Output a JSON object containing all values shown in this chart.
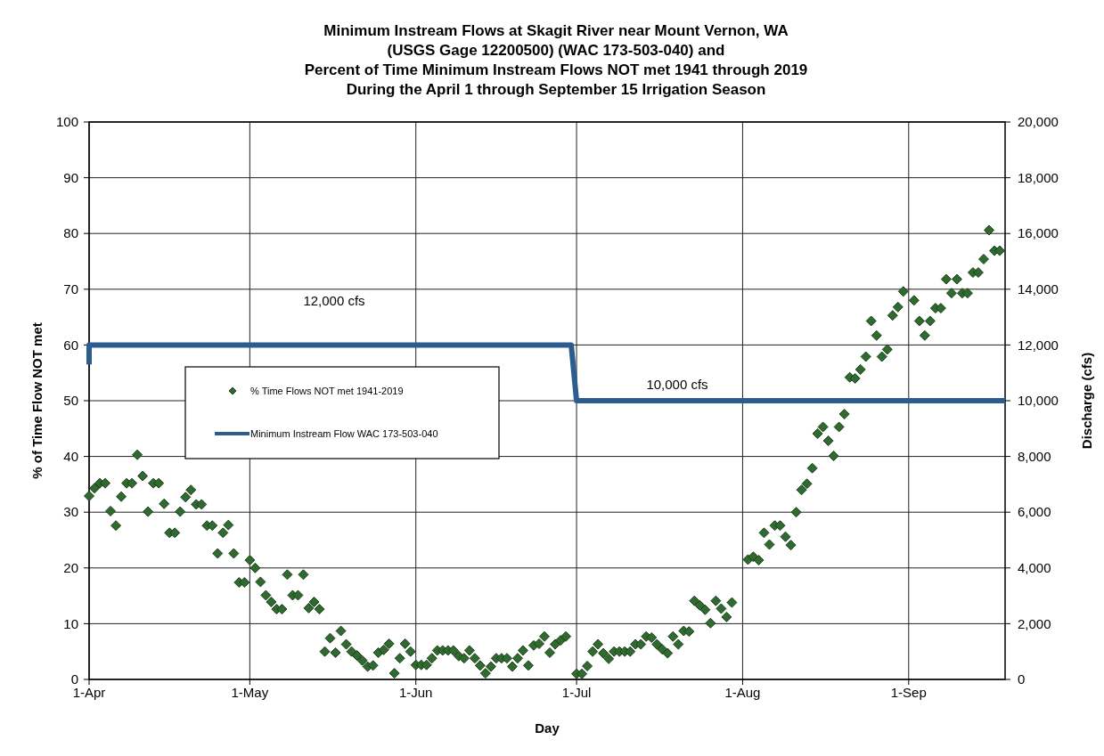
{
  "chart_data": {
    "type": "scatter",
    "title": "Minimum Instream Flows at Skagit River near Mount Vernon, WA\n(USGS Gage 12200500) (WAC 173-503-040) and\nPercent of Time Minimum Instream Flows NOT met 1941 through 2019\nDuring the April 1 through September 15 Irrigation Season",
    "xlabel": "Day",
    "ylabel": "% of Time Flow NOT met",
    "y2label": "Discharge (cfs)",
    "xlim": [
      "--04-01",
      "--09-19"
    ],
    "xticks": [
      {
        "value": "--04-01",
        "label": "1-Apr"
      },
      {
        "value": "--05-01",
        "label": "1-May"
      },
      {
        "value": "--06-01",
        "label": "1-Jun"
      },
      {
        "value": "--07-01",
        "label": "1-Jul"
      },
      {
        "value": "--08-01",
        "label": "1-Aug"
      },
      {
        "value": "--09-01",
        "label": "1-Sep"
      }
    ],
    "ylim": [
      0,
      100
    ],
    "yticks": [
      0,
      10,
      20,
      30,
      40,
      50,
      60,
      70,
      80,
      90,
      100
    ],
    "y2lim": [
      0,
      20000
    ],
    "y2ticks": [
      0,
      {
        "value": 2000,
        "label": "2,000"
      },
      {
        "value": 4000,
        "label": "4,000"
      },
      {
        "value": 6000,
        "label": "6,000"
      },
      {
        "value": 8000,
        "label": "8,000"
      },
      {
        "value": 10000,
        "label": "10,000"
      },
      {
        "value": 12000,
        "label": "12,000"
      },
      {
        "value": 14000,
        "label": "14,000"
      },
      {
        "value": 16000,
        "label": "16,000"
      },
      {
        "value": 18000,
        "label": "18,000"
      },
      {
        "value": 20000,
        "label": "20,000"
      }
    ],
    "grid": true,
    "legend": "left",
    "annotations": [
      "12,000 cfs",
      "10,000 cfs"
    ],
    "series": [
      {
        "name": "% Time Flows NOT met 1941-2019",
        "marker": "diamond",
        "color": "#2f6a2f",
        "x": [
          "--04-01",
          "--04-02",
          "--04-03",
          "--04-04",
          "--04-05",
          "--04-06",
          "--04-07",
          "--04-08",
          "--04-09",
          "--04-10",
          "--04-11",
          "--04-12",
          "--04-13",
          "--04-14",
          "--04-15",
          "--04-16",
          "--04-17",
          "--04-18",
          "--04-19",
          "--04-20",
          "--04-21",
          "--04-22",
          "--04-23",
          "--04-24",
          "--04-25",
          "--04-26",
          "--04-27",
          "--04-28",
          "--04-29",
          "--04-30",
          "--05-01",
          "--05-02",
          "--05-03",
          "--05-04",
          "--05-05",
          "--05-06",
          "--05-07",
          "--05-08",
          "--05-09",
          "--05-10",
          "--05-11",
          "--05-12",
          "--05-13",
          "--05-14",
          "--05-15",
          "--05-16",
          "--05-17",
          "--05-18",
          "--05-19",
          "--05-20",
          "--05-21",
          "--05-22",
          "--05-23",
          "--05-24",
          "--05-25",
          "--05-26",
          "--05-27",
          "--05-28",
          "--05-29",
          "--05-30",
          "--05-31",
          "--06-01",
          "--06-02",
          "--06-03",
          "--06-04",
          "--06-05",
          "--06-06",
          "--06-07",
          "--06-08",
          "--06-09",
          "--06-10",
          "--06-11",
          "--06-12",
          "--06-13",
          "--06-14",
          "--06-15",
          "--06-16",
          "--06-17",
          "--06-18",
          "--06-19",
          "--06-20",
          "--06-21",
          "--06-22",
          "--06-23",
          "--06-24",
          "--06-25",
          "--06-26",
          "--06-27",
          "--06-28",
          "--06-29",
          "--07-01",
          "--07-02",
          "--07-03",
          "--07-04",
          "--07-05",
          "--07-06",
          "--07-07",
          "--07-08",
          "--07-09",
          "--07-10",
          "--07-11",
          "--07-12",
          "--07-13",
          "--07-14",
          "--07-15",
          "--07-16",
          "--07-17",
          "--07-18",
          "--07-19",
          "--07-20",
          "--07-21",
          "--07-22",
          "--07-23",
          "--07-24",
          "--07-25",
          "--07-26",
          "--07-27",
          "--07-28",
          "--07-29",
          "--07-30",
          "--08-02",
          "--08-03",
          "--08-04",
          "--08-05",
          "--08-06",
          "--08-07",
          "--08-08",
          "--08-09",
          "--08-10",
          "--08-11",
          "--08-12",
          "--08-13",
          "--08-14",
          "--08-15",
          "--08-16",
          "--08-17",
          "--08-18",
          "--08-19",
          "--08-20",
          "--08-21",
          "--08-22",
          "--08-23",
          "--08-24",
          "--08-25",
          "--08-26",
          "--08-27",
          "--08-28",
          "--08-29",
          "--08-30",
          "--08-31",
          "--09-02",
          "--09-03",
          "--09-04",
          "--09-05",
          "--09-06",
          "--09-07",
          "--09-08",
          "--09-09",
          "--09-10",
          "--09-11",
          "--09-12",
          "--09-13",
          "--09-14",
          "--09-15",
          "--09-16",
          "--09-17",
          "--09-18"
        ],
        "values": [
          32.9,
          34.3,
          35.2,
          35.2,
          30.2,
          27.6,
          32.8,
          35.2,
          35.2,
          40.3,
          36.5,
          30.1,
          35.2,
          35.2,
          31.5,
          26.3,
          26.3,
          30.1,
          32.7,
          34,
          31.4,
          31.4,
          27.6,
          27.6,
          22.6,
          26.3,
          27.7,
          22.6,
          17.4,
          17.4,
          21.4,
          20,
          17.5,
          15.1,
          13.9,
          12.6,
          12.6,
          18.8,
          15.1,
          15.1,
          18.8,
          12.8,
          13.9,
          12.6,
          5,
          7.4,
          4.8,
          8.7,
          6.3,
          5,
          4.3,
          3.4,
          2.3,
          2.5,
          4.8,
          5.3,
          6.4,
          1.1,
          3.8,
          6.4,
          5,
          2.6,
          2.6,
          2.6,
          3.8,
          5.2,
          5.2,
          5.2,
          5.2,
          4.2,
          3.8,
          5.2,
          3.8,
          2.5,
          1.1,
          2.3,
          3.8,
          3.8,
          3.8,
          2.3,
          3.8,
          5.2,
          2.5,
          6.1,
          6.4,
          7.7,
          4.8,
          6.3,
          7,
          7.7,
          1,
          1,
          2.4,
          5,
          6.3,
          4.7,
          3.7,
          5,
          5,
          5,
          5,
          6.3,
          6.3,
          7.7,
          7.5,
          6.3,
          5.4,
          4.7,
          7.7,
          6.3,
          8.7,
          8.6,
          14.1,
          13.3,
          12.5,
          10.1,
          14.1,
          12.7,
          11.2,
          13.8,
          21.5,
          22,
          21.4,
          26.3,
          24.2,
          27.6,
          27.6,
          25.6,
          24.1,
          30,
          34,
          35.1,
          37.9,
          44.1,
          45.3,
          42.8,
          40.1,
          45.3,
          47.6,
          54.2,
          54,
          55.6,
          57.9,
          64.3,
          61.7,
          57.9,
          59.2,
          65.3,
          66.8,
          69.6,
          68,
          64.3,
          61.7,
          64.3,
          66.6,
          66.6,
          71.8,
          69.3,
          71.8,
          69.3,
          69.3,
          73,
          73,
          75.4,
          80.6,
          76.9,
          76.9
        ]
      },
      {
        "name": "Minimum Instream Flow WAC 173-503-040",
        "type": "line",
        "axis": "y2",
        "marker": "none",
        "line_style": "solid",
        "color": "#2c5d8f",
        "x": [
          "--04-01",
          "--04-01",
          "--06-30",
          "--07-01",
          "--09-19"
        ],
        "values": [
          11300,
          12000,
          12000,
          10000,
          10000
        ]
      }
    ]
  }
}
